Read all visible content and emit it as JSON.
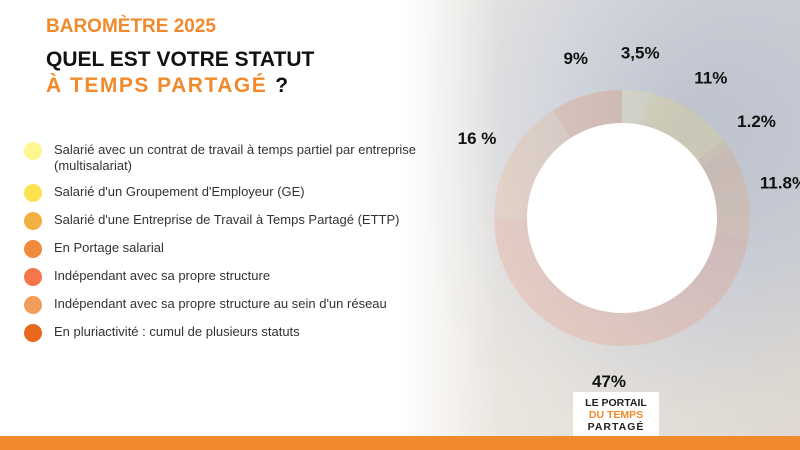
{
  "header": {
    "kicker": "BAROMÈTRE 2025",
    "question_line1": "QUEL EST VOTRE STATUT",
    "question_line2": "À TEMPS PARTAGÉ",
    "question_mark": "?"
  },
  "logo": {
    "lines": [
      "LE PORTAIL",
      "DU TEMPS",
      "PARTAGÉ"
    ]
  },
  "chart_data": {
    "type": "pie",
    "categories": [
      "Salarié avec un contrat de travail à temps partiel par entreprise (multisalariat)",
      "Salarié d'un Groupement d'Employeur (GE)",
      "Salarié d'une Entreprise de Travail à Temps Partagé (ETTP)",
      "En Portage salarial",
      "Indépendant avec sa propre structure",
      "Indépendant avec sa propre structure au sein d'un réseau",
      "En pluriactivité : cumul de plusieurs statuts"
    ],
    "values": [
      3.5,
      11,
      1.2,
      11.8,
      47,
      16,
      9
    ],
    "value_labels": [
      "3,5%",
      "11%",
      "1.2%",
      "11.8%",
      "47%",
      "16 %",
      "9%"
    ],
    "colors": [
      "#fff68f",
      "#fde24f",
      "#f2b042",
      "#f08a3c",
      "#f5764a",
      "#f29c5a",
      "#e8681e"
    ]
  }
}
